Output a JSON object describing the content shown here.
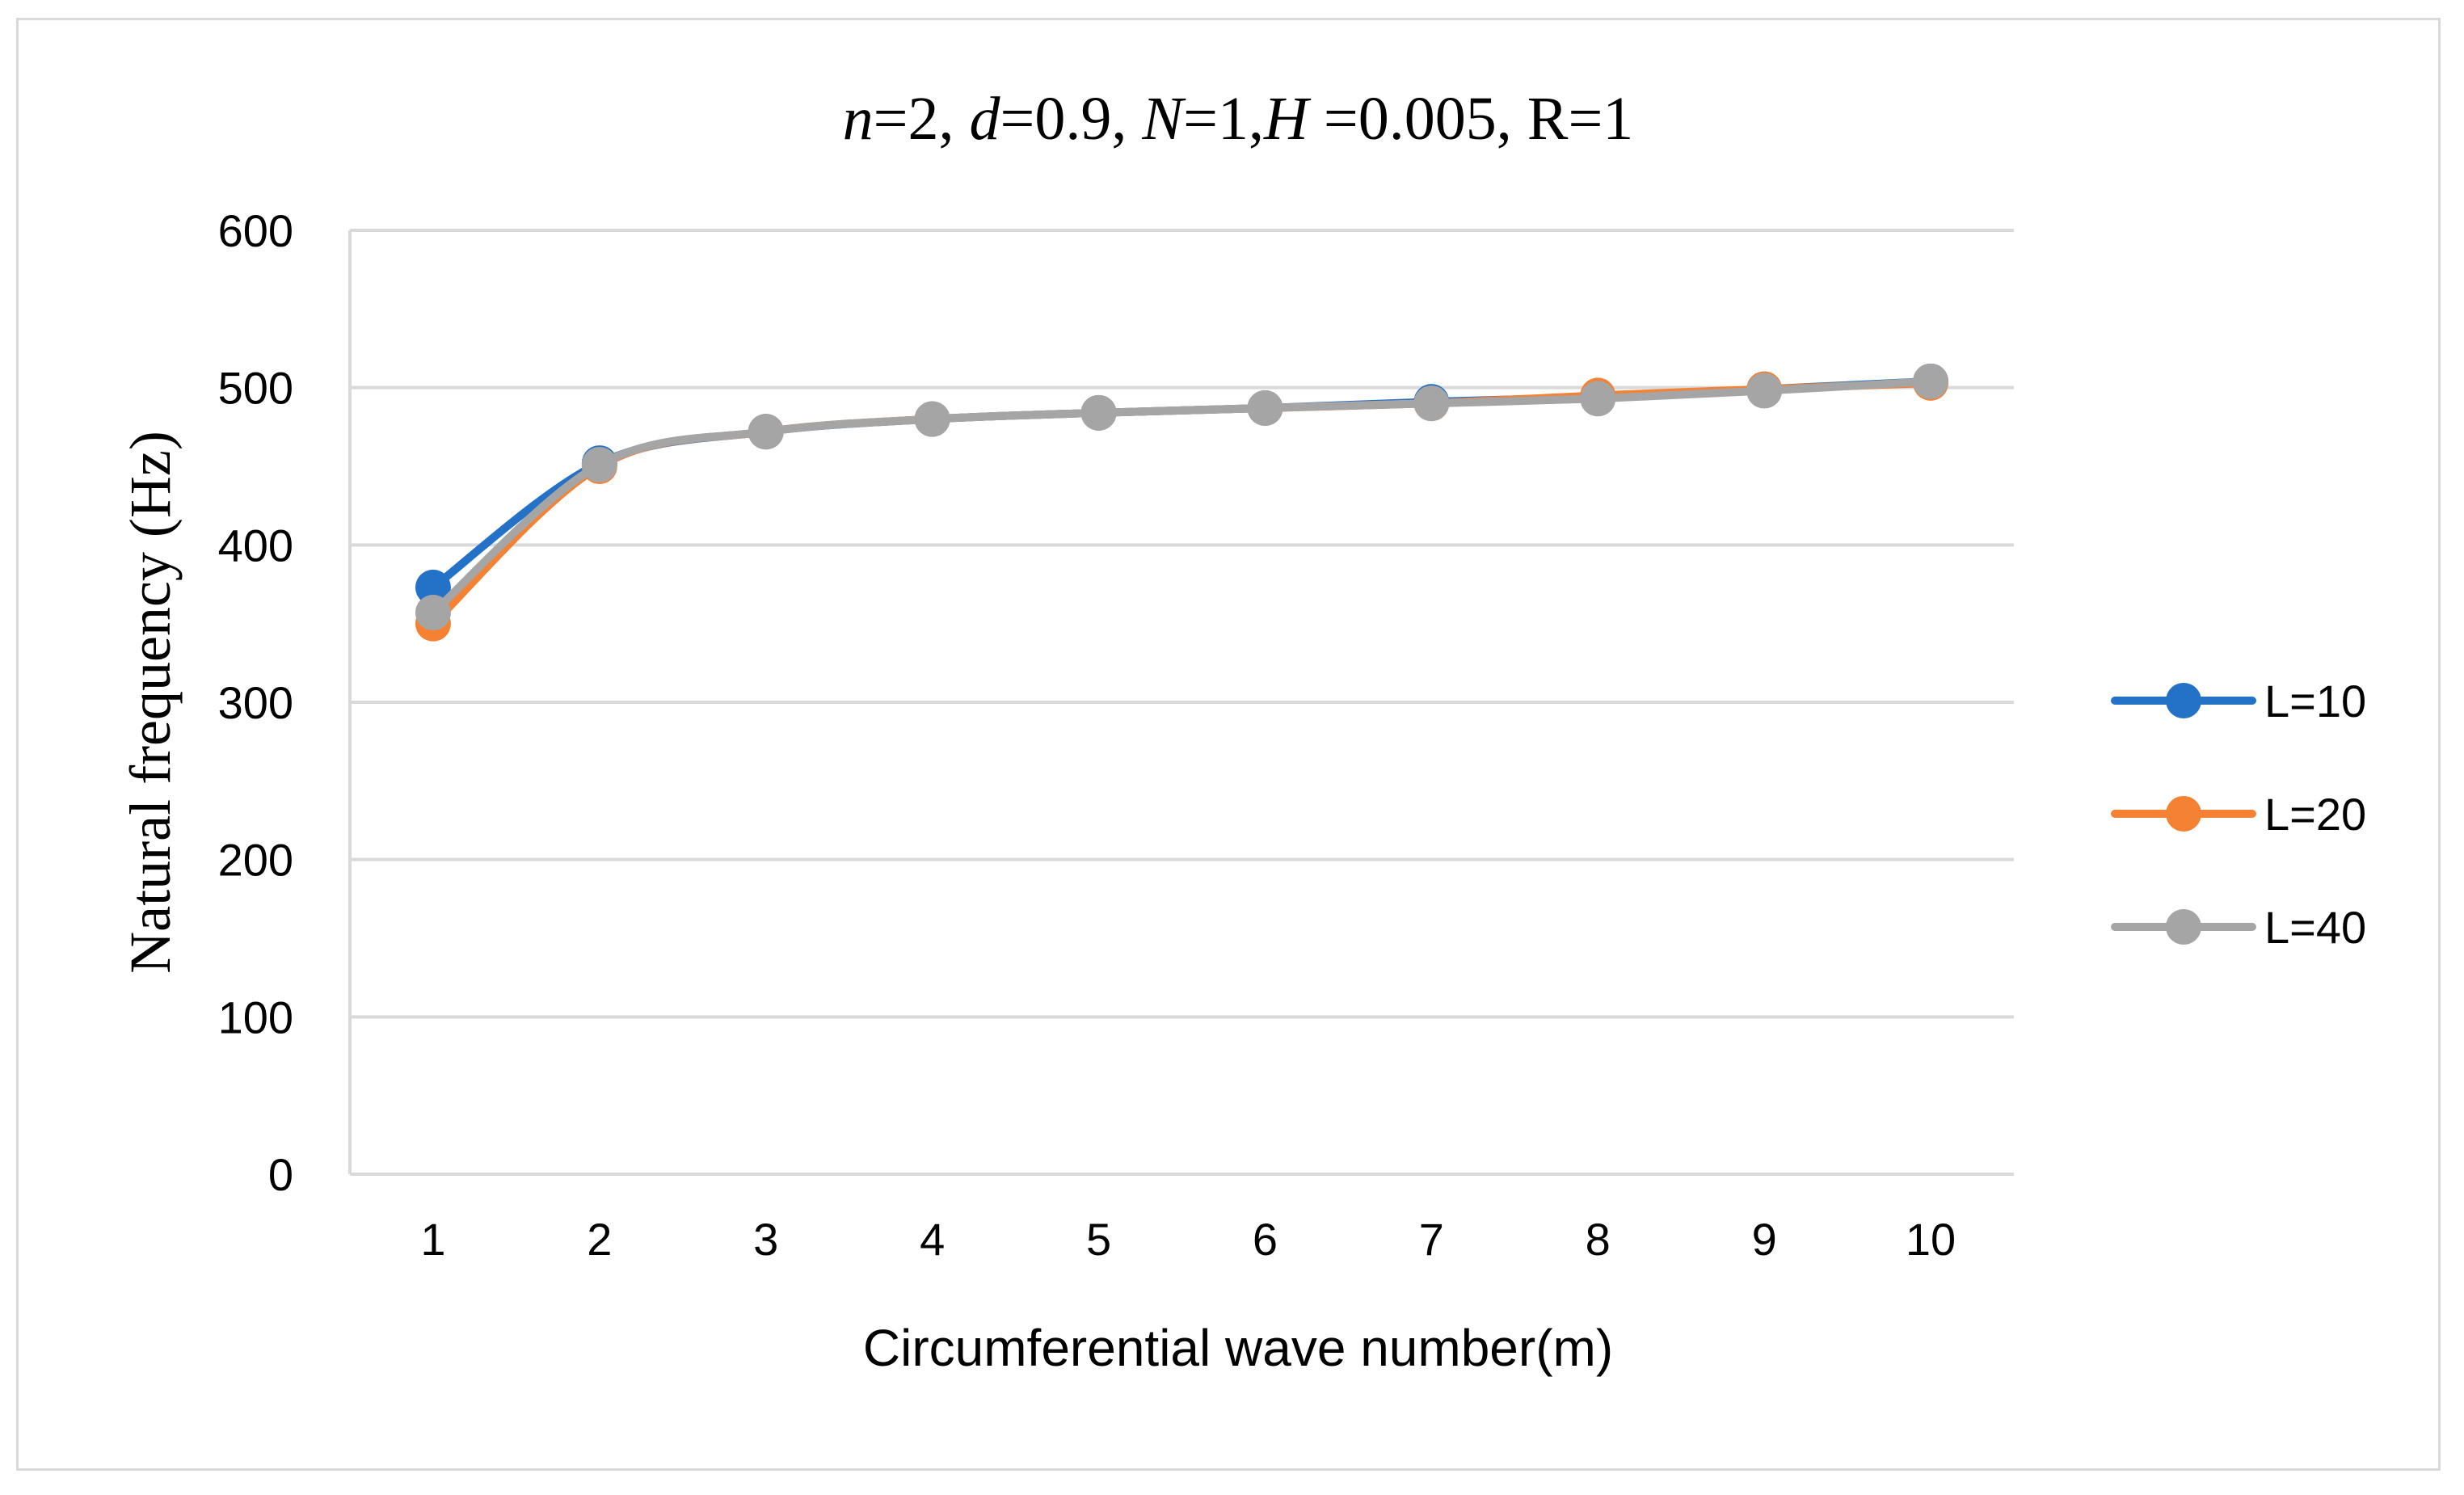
{
  "chart_data": {
    "type": "line",
    "title_parts": [
      {
        "text": "n",
        "italic": true
      },
      {
        "text": "=2, ",
        "italic": false
      },
      {
        "text": "d",
        "italic": true
      },
      {
        "text": "=0.9, ",
        "italic": false
      },
      {
        "text": "N",
        "italic": true
      },
      {
        "text": "=1,",
        "italic": false
      },
      {
        "text": "H",
        "italic": true
      },
      {
        "text": " =0.005, R=1",
        "italic": false
      }
    ],
    "xlabel": "Circumferential wave number(m)",
    "ylabel": "Natural frequency (Hz)",
    "categories": [
      "1",
      "2",
      "3",
      "4",
      "5",
      "6",
      "7",
      "8",
      "9",
      "10"
    ],
    "ylim": [
      0,
      600
    ],
    "yticks": [
      "0",
      "100",
      "200",
      "300",
      "400",
      "500",
      "600"
    ],
    "grid": true,
    "legend_position": "right",
    "series": [
      {
        "name": "L=10",
        "color": "#2471c8",
        "values": [
          373,
          452,
          472,
          480,
          484,
          487,
          491,
          494,
          499,
          504
        ]
      },
      {
        "name": "L=20",
        "color": "#f58232",
        "values": [
          350,
          450,
          472,
          480,
          484,
          487,
          490,
          495,
          499,
          503
        ]
      },
      {
        "name": "L=40",
        "color": "#a5a5a5",
        "values": [
          357,
          451,
          472,
          480,
          484,
          487,
          490,
          493,
          498,
          504
        ]
      }
    ]
  }
}
